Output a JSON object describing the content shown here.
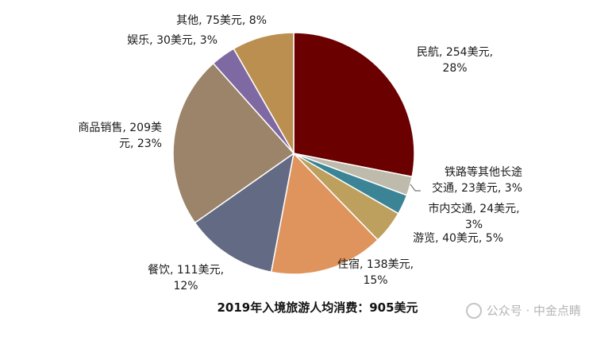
{
  "chart_data": {
    "type": "pie",
    "title": "2019年入境旅游人均消费：905美元",
    "unit": "美元",
    "slices": [
      {
        "category": "民航",
        "value": 254,
        "percent": 28,
        "color": "#6B0000",
        "label_lines": [
          "民航, 254美元,",
          "28%"
        ]
      },
      {
        "category": "铁路等其他长途交通",
        "value": 23,
        "percent": 3,
        "color": "#BEBBAC",
        "label_lines": [
          "铁路等其他长途",
          "交通, 23美元, 3%"
        ]
      },
      {
        "category": "市内交通",
        "value": 24,
        "percent": 3,
        "color": "#3B8496",
        "label_lines": [
          "市内交通, 24美元,",
          "3%"
        ]
      },
      {
        "category": "游览",
        "value": 40,
        "percent": 5,
        "color": "#BD9F5E",
        "label_lines": [
          "游览, 40美元, 5%"
        ]
      },
      {
        "category": "住宿",
        "value": 138,
        "percent": 15,
        "color": "#DF945E",
        "label_lines": [
          "住宿, 138美元,",
          "15%"
        ]
      },
      {
        "category": "餐饮",
        "value": 111,
        "percent": 12,
        "color": "#636B84",
        "label_lines": [
          "餐饮, 111美元,",
          "12%"
        ]
      },
      {
        "category": "商品销售",
        "value": 209,
        "percent": 23,
        "color": "#9B8469",
        "label_lines": [
          "商品销售, 209美",
          "元, 23%"
        ]
      },
      {
        "category": "娱乐",
        "value": 30,
        "percent": 3,
        "color": "#7E69A2",
        "label_lines": [
          "娱乐, 30美元, 3%"
        ]
      },
      {
        "category": "其他",
        "value": 75,
        "percent": 8,
        "color": "#BB8F4F",
        "label_lines": [
          "其他, 75美元, 8%"
        ]
      }
    ]
  },
  "watermark": {
    "text": "公众号 · 中金点睛",
    "icon": "wechat-icon"
  }
}
